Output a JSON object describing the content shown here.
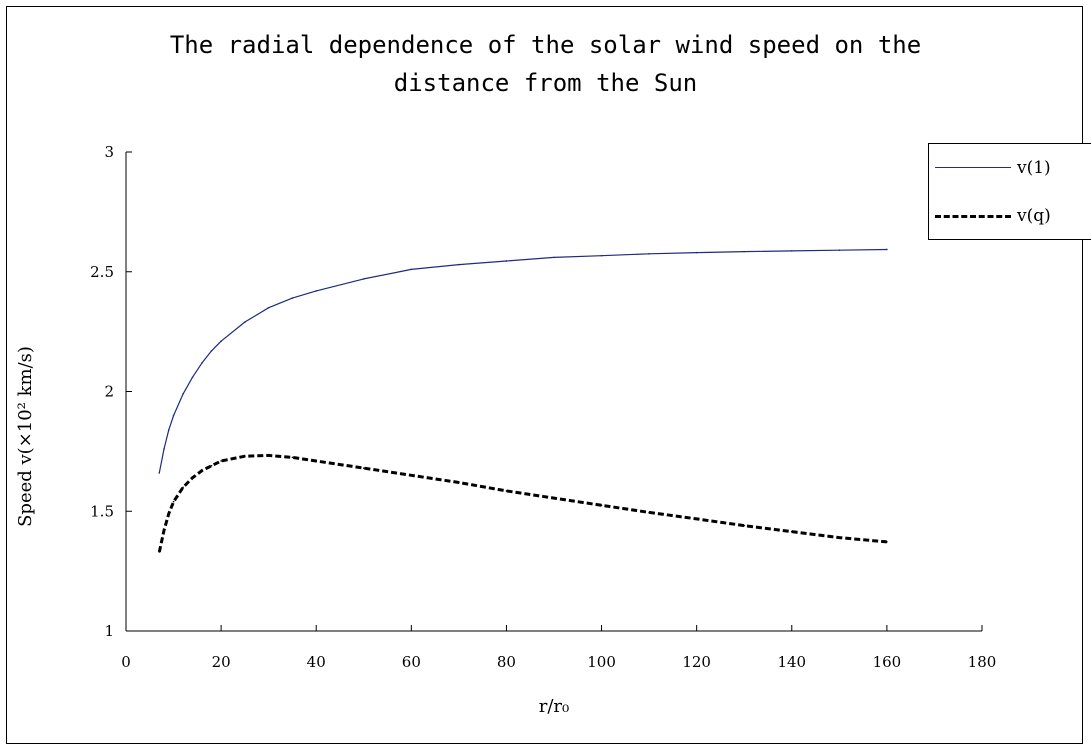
{
  "chart_data": {
    "type": "line",
    "title": "The radial dependence of the solar wind speed on the\ndistance from the Sun",
    "xlabel": "r/r₀",
    "ylabel": "Speed v(×10² km/s)",
    "xlim": [
      0,
      180
    ],
    "ylim": [
      1,
      3
    ],
    "xticks": [
      0,
      20,
      40,
      60,
      80,
      100,
      120,
      140,
      160,
      180
    ],
    "yticks": [
      1,
      1.5,
      2,
      2.5,
      3
    ],
    "ytick_labels": [
      "1",
      "1.5",
      "2",
      "2.5",
      "3"
    ],
    "grid": false,
    "legend_position": "top-right",
    "series": [
      {
        "name": "v(1)",
        "color": "#1f2a80",
        "style": "solid",
        "x": [
          7,
          8,
          9,
          10,
          12,
          14,
          16,
          18,
          20,
          25,
          30,
          35,
          40,
          50,
          60,
          70,
          80,
          90,
          100,
          110,
          120,
          130,
          140,
          150,
          160
        ],
        "y": [
          1.66,
          1.76,
          1.84,
          1.9,
          1.99,
          2.06,
          2.12,
          2.17,
          2.21,
          2.29,
          2.35,
          2.39,
          2.42,
          2.47,
          2.51,
          2.53,
          2.545,
          2.56,
          2.567,
          2.575,
          2.58,
          2.584,
          2.587,
          2.59,
          2.593
        ]
      },
      {
        "name": "v(q)",
        "color": "#000000",
        "style": "dashed",
        "x": [
          7,
          8,
          9,
          10,
          12,
          14,
          16,
          18,
          20,
          25,
          30,
          35,
          40,
          50,
          60,
          70,
          80,
          90,
          100,
          110,
          120,
          130,
          140,
          150,
          160
        ],
        "y": [
          1.33,
          1.42,
          1.49,
          1.54,
          1.6,
          1.64,
          1.67,
          1.69,
          1.71,
          1.73,
          1.733,
          1.725,
          1.71,
          1.68,
          1.65,
          1.62,
          1.585,
          1.555,
          1.525,
          1.495,
          1.468,
          1.44,
          1.415,
          1.39,
          1.372
        ]
      }
    ]
  }
}
